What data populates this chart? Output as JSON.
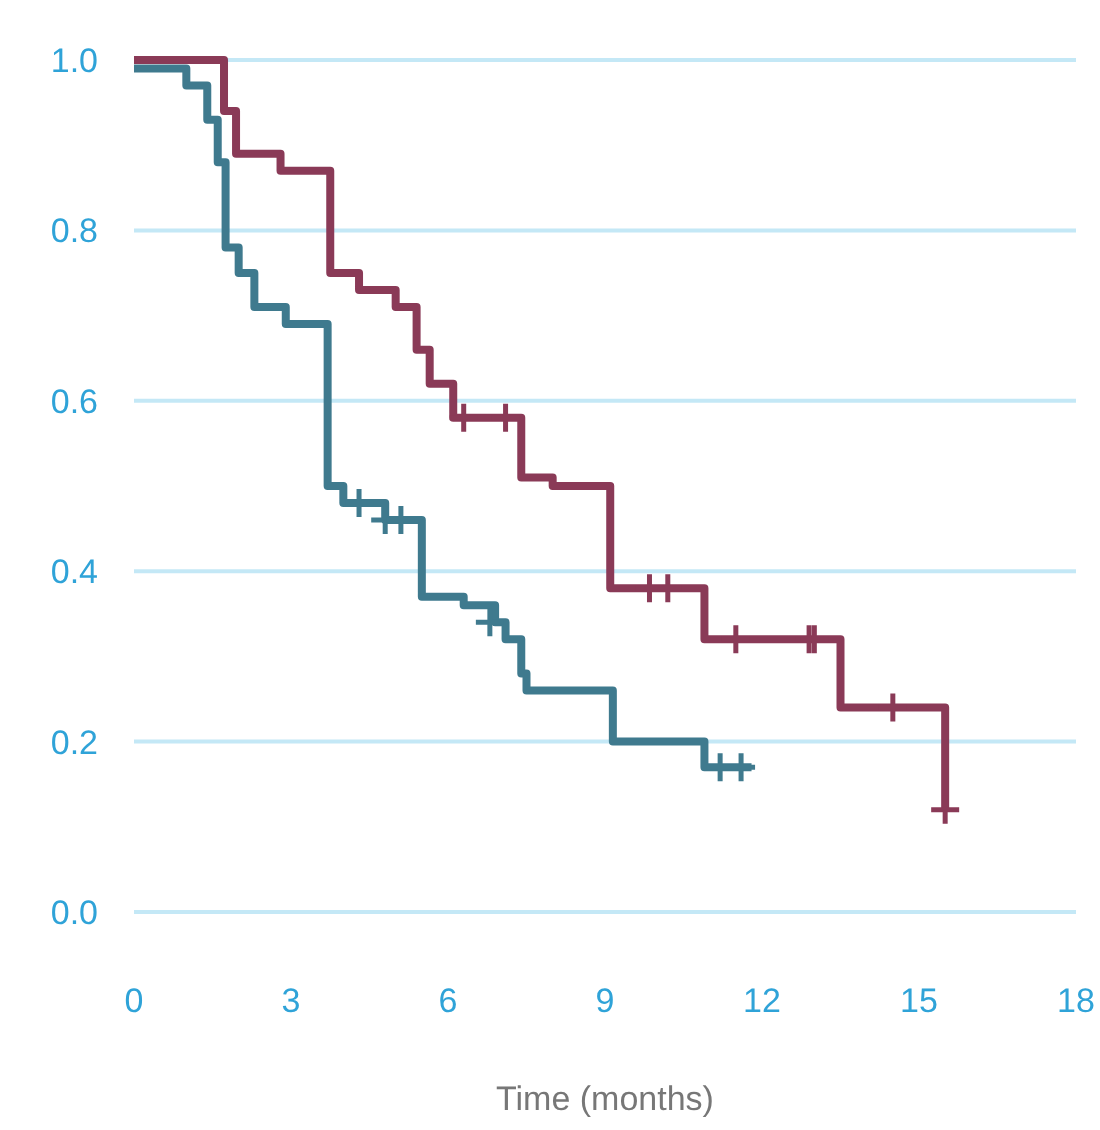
{
  "chart_data": {
    "type": "step",
    "xlabel": "Time (months)",
    "xlim": [
      0,
      18
    ],
    "xticks": [
      0,
      3,
      6,
      9,
      12,
      15,
      18
    ],
    "ylim": [
      0,
      1
    ],
    "yticks": [
      {
        "value": 0,
        "label": "0.0"
      },
      {
        "value": 0.2,
        "label": "0.2"
      },
      {
        "value": 0.4,
        "label": "0.4"
      },
      {
        "value": 0.6,
        "label": "0.6"
      },
      {
        "value": 0.8,
        "label": "0.8"
      },
      {
        "value": 1,
        "label": "1.0"
      }
    ],
    "grid": "y",
    "series": [
      {
        "color": "#8a3a57",
        "x": [
          0,
          1.72,
          1.95,
          2.8,
          3.75,
          4.3,
          5.0,
          5.4,
          5.65,
          6.1,
          7.4,
          8.0,
          9.1,
          10.9,
          13.5,
          15.5,
          15.5
        ],
        "values": [
          1.0,
          0.94,
          0.89,
          0.87,
          0.75,
          0.73,
          0.71,
          0.66,
          0.62,
          0.58,
          0.51,
          0.5,
          0.38,
          0.32,
          0.24,
          0.24,
          0.12
        ]
      },
      {
        "color": "#3f7a8e",
        "x": [
          0,
          1.0,
          1.4,
          1.6,
          1.75,
          2.0,
          2.3,
          2.9,
          3.7,
          4.0,
          4.8,
          5.5,
          6.3,
          6.9,
          7.1,
          7.4,
          7.5,
          9.15,
          10.9,
          11.8
        ],
        "values": [
          0.99,
          0.97,
          0.93,
          0.88,
          0.78,
          0.75,
          0.71,
          0.69,
          0.5,
          0.48,
          0.46,
          0.37,
          0.36,
          0.34,
          0.32,
          0.28,
          0.26,
          0.2,
          0.17,
          0.17
        ]
      },
      {
        "type": "scatter",
        "marker": "cross",
        "color": "#8a3a57",
        "x": [
          6.3,
          7.1,
          9.85,
          10.2,
          11.5,
          12.9,
          13.0,
          14.5,
          15.5
        ],
        "values": [
          0.58,
          0.58,
          0.38,
          0.38,
          0.32,
          0.32,
          0.32,
          0.24,
          0.12
        ]
      },
      {
        "type": "scatter",
        "marker": "cross",
        "color": "#3f7a8e",
        "x": [
          4.3,
          4.8,
          5.1,
          6.8,
          11.2,
          11.6
        ],
        "values": [
          0.48,
          0.46,
          0.46,
          0.34,
          0.17,
          0.17
        ]
      }
    ]
  }
}
